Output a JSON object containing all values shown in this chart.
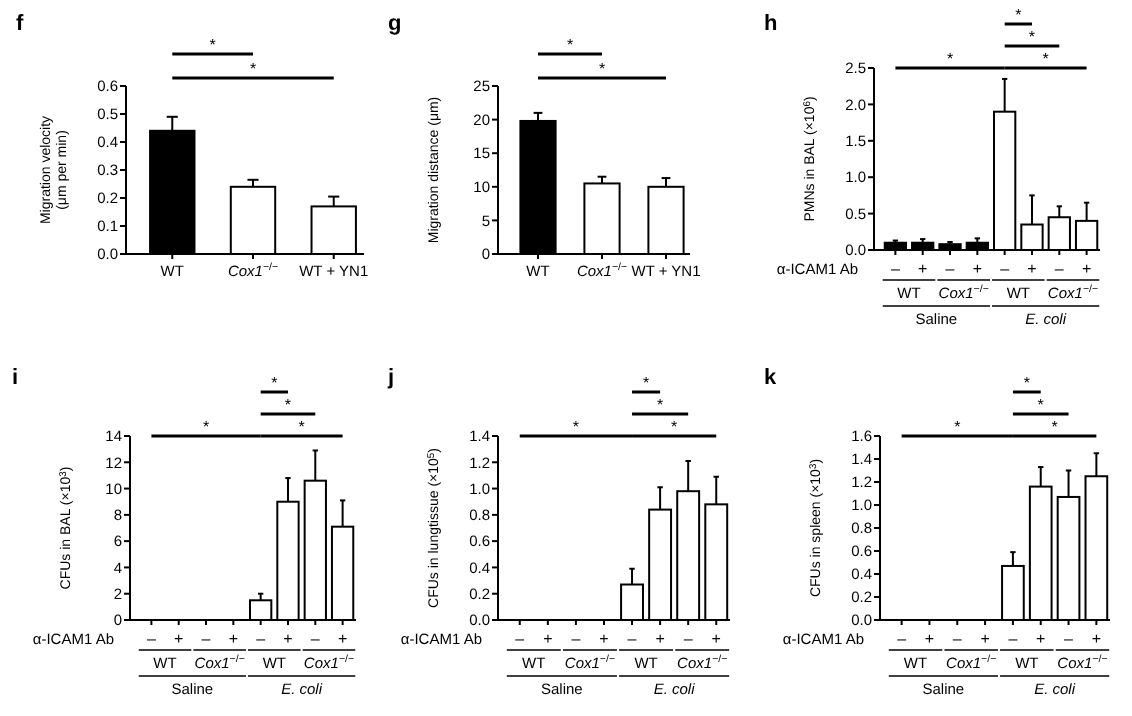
{
  "chart_data": [
    {
      "type": "bar",
      "title": "f",
      "ylabel": "Migration velocity (μm per min)",
      "categories": [
        "WT",
        "Cox1$^{−/−}$",
        "WT + YN1"
      ],
      "values": [
        0.44,
        0.24,
        0.17
      ],
      "colors": [
        "#000000",
        "#ffffff",
        "#ffffff"
      ],
      "errors": [
        [
          0.44,
          0.49
        ],
        [
          0.24,
          0.265
        ],
        [
          0.17,
          0.205
        ]
      ],
      "ylim": [
        0,
        0.6
      ],
      "yticks": [
        {
          "value": 0,
          "label": "0.0"
        },
        0.1,
        0.2,
        0.3,
        0.4,
        0.5,
        0.6
      ],
      "annotations": [
        "*",
        "*"
      ]
    },
    {
      "type": "bar",
      "title": "g",
      "ylabel": "Migration distance (μm)",
      "categories": [
        "WT",
        "Cox1$^{−/−}$",
        "WT + YN1"
      ],
      "values": [
        19.8,
        10.5,
        10
      ],
      "colors": [
        "#000000",
        "#ffffff",
        "#ffffff"
      ],
      "errors": [
        [
          19.8,
          21
        ],
        [
          10.5,
          11.5
        ],
        [
          10,
          11.3
        ]
      ],
      "ylim": [
        0,
        25
      ],
      "yticks": [
        0,
        5,
        10,
        15,
        20,
        25
      ],
      "annotations": [
        "*",
        "*"
      ]
    },
    {
      "type": "bar",
      "title": "h",
      "ylabel": "PMNs in BAL (×10$^{6}$)",
      "xlabel": "α-ICAM1 Ab",
      "categories": [
        "–",
        "+",
        "–",
        "+",
        "–",
        "+",
        "–",
        "+"
      ],
      "values": [
        0.1,
        0.1,
        0.08,
        0.1,
        1.9,
        0.35,
        0.45,
        0.4
      ],
      "colors": [
        "#000000",
        "#000000",
        "#000000",
        "#000000",
        "#ffffff",
        "#ffffff",
        "#ffffff",
        "#ffffff"
      ],
      "errors": [
        [
          0.1,
          0.13
        ],
        [
          0.1,
          0.15
        ],
        [
          0.08,
          0.11
        ],
        [
          0.1,
          0.16
        ],
        [
          1.9,
          2.35
        ],
        [
          0.35,
          0.75
        ],
        [
          0.45,
          0.6
        ],
        [
          0.4,
          0.65
        ]
      ],
      "ylim": [
        0,
        2.5
      ],
      "yticks": [
        {
          "value": 0,
          "label": "0.0"
        },
        0.5,
        {
          "value": 1,
          "label": "1.0"
        },
        1.5,
        {
          "value": 2,
          "label": "2.0"
        },
        2.5
      ],
      "annotations": [
        "*",
        "*",
        "*",
        "*",
        "WT",
        "Cox1$^{−/−}$",
        "WT",
        "Cox1$^{−/−}$",
        "Saline",
        "E. coli"
      ]
    },
    {
      "type": "bar",
      "title": "i",
      "ylabel": "CFUs in BAL (×10$^{3}$)",
      "xlabel": "α-ICAM1 Ab",
      "categories": [
        "–",
        "+",
        "–",
        "+",
        "–",
        "+",
        "–",
        "+"
      ],
      "values": [
        0,
        0,
        0,
        0,
        1.5,
        9,
        10.6,
        7.1
      ],
      "colors": [
        "#ffffff",
        "#ffffff",
        "#ffffff",
        "#ffffff",
        "#ffffff",
        "#ffffff",
        "#ffffff",
        "#ffffff"
      ],
      "errors": [
        null,
        null,
        null,
        null,
        [
          1.5,
          2
        ],
        [
          9,
          10.8
        ],
        [
          10.6,
          12.9
        ],
        [
          7.1,
          9.1
        ]
      ],
      "ylim": [
        0,
        14
      ],
      "yticks": [
        0,
        2,
        4,
        6,
        8,
        10,
        12,
        14
      ],
      "annotations": [
        "*",
        "*",
        "*",
        "*",
        "WT",
        "Cox1$^{−/−}$",
        "WT",
        "Cox1$^{−/−}$",
        "Saline",
        "E. coli"
      ]
    },
    {
      "type": "bar",
      "title": "j",
      "ylabel": "CFUs in lungtissue (×10$^{5}$)",
      "xlabel": "α-ICAM1 Ab",
      "categories": [
        "–",
        "+",
        "–",
        "+",
        "–",
        "+",
        "–",
        "+"
      ],
      "values": [
        0,
        0,
        0,
        0,
        0.27,
        0.84,
        0.98,
        0.88
      ],
      "colors": [
        "#ffffff",
        "#ffffff",
        "#ffffff",
        "#ffffff",
        "#ffffff",
        "#ffffff",
        "#ffffff",
        "#ffffff"
      ],
      "errors": [
        null,
        null,
        null,
        null,
        [
          0.27,
          0.39
        ],
        [
          0.84,
          1.01
        ],
        [
          0.98,
          1.21
        ],
        [
          0.88,
          1.09
        ]
      ],
      "ylim": [
        0,
        1.4
      ],
      "yticks": [
        {
          "value": 0,
          "label": "0.0"
        },
        0.2,
        0.4,
        0.6,
        0.8,
        {
          "value": 1,
          "label": "1.0"
        },
        1.2,
        1.4
      ],
      "annotations": [
        "*",
        "*",
        "*",
        "*",
        "WT",
        "Cox1$^{−/−}$",
        "WT",
        "Cox1$^{−/−}$",
        "Saline",
        "E. coli"
      ]
    },
    {
      "type": "bar",
      "title": "k",
      "ylabel": "CFUs in spleen (×10$^{3}$)",
      "xlabel": "α-ICAM1 Ab",
      "categories": [
        "–",
        "+",
        "–",
        "+",
        "–",
        "+",
        "–",
        "+"
      ],
      "values": [
        0,
        0,
        0,
        0,
        0.47,
        1.16,
        1.07,
        1.25
      ],
      "colors": [
        "#ffffff",
        "#ffffff",
        "#ffffff",
        "#ffffff",
        "#ffffff",
        "#ffffff",
        "#ffffff",
        "#ffffff"
      ],
      "errors": [
        null,
        null,
        null,
        null,
        [
          0.47,
          0.59
        ],
        [
          1.16,
          1.33
        ],
        [
          1.07,
          1.3
        ],
        [
          1.25,
          1.45
        ]
      ],
      "ylim": [
        0,
        1.6
      ],
      "yticks": [
        {
          "value": 0,
          "label": "0.0"
        },
        0.2,
        0.4,
        0.6,
        0.8,
        {
          "value": 1,
          "label": "1.0"
        },
        1.2,
        1.4,
        1.6
      ],
      "annotations": [
        "*",
        "*",
        "*",
        "*",
        "WT",
        "Cox1$^{−/−}$",
        "WT",
        "Cox1$^{−/−}$",
        "Saline",
        "E. coli"
      ]
    }
  ]
}
